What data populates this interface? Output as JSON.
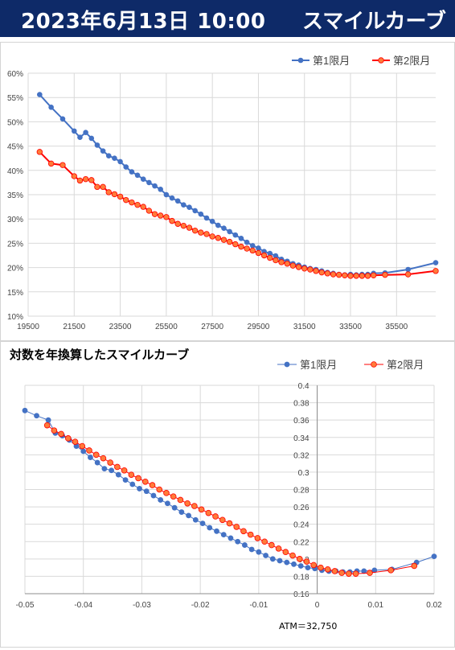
{
  "header": {
    "date": "2023年6月13日 10:00",
    "title": "スマイルカーブ"
  },
  "colors": {
    "header_bg": "#0e2a68",
    "series1": "#4472c4",
    "series2": "#ff0000",
    "series2_fill": "#ff7b3a",
    "grid": "#d9d9d9"
  },
  "chart_data": [
    {
      "type": "line",
      "title": "",
      "ytick_format": "percent",
      "xlim": [
        19500,
        37200
      ],
      "ylim": [
        0.1,
        0.6
      ],
      "xticks": [
        19500,
        21500,
        23500,
        25500,
        27500,
        29500,
        31500,
        33500,
        35500
      ],
      "yticks": [
        0.1,
        0.15,
        0.2,
        0.25,
        0.3,
        0.35,
        0.4,
        0.45,
        0.5,
        0.55,
        0.6
      ],
      "legend": "top-right",
      "grid": true,
      "series": [
        {
          "name": "第1限月",
          "x": [
            20000,
            20500,
            21000,
            21500,
            21750,
            22000,
            22250,
            22500,
            22750,
            23000,
            23250,
            23500,
            23750,
            24000,
            24250,
            24500,
            24750,
            25000,
            25250,
            25500,
            25750,
            26000,
            26250,
            26500,
            26750,
            27000,
            27250,
            27500,
            27750,
            28000,
            28250,
            28500,
            28750,
            29000,
            29250,
            29500,
            29750,
            30000,
            30250,
            30500,
            30750,
            31000,
            31250,
            31500,
            31750,
            32000,
            32250,
            32500,
            32750,
            33000,
            33250,
            33500,
            33750,
            34000,
            34250,
            34500,
            35000,
            36000,
            37200
          ],
          "y": [
            0.556,
            0.53,
            0.506,
            0.481,
            0.468,
            0.478,
            0.466,
            0.452,
            0.44,
            0.43,
            0.425,
            0.418,
            0.407,
            0.397,
            0.39,
            0.382,
            0.375,
            0.368,
            0.361,
            0.35,
            0.343,
            0.337,
            0.329,
            0.324,
            0.317,
            0.31,
            0.302,
            0.295,
            0.287,
            0.281,
            0.274,
            0.267,
            0.26,
            0.252,
            0.245,
            0.24,
            0.233,
            0.229,
            0.224,
            0.217,
            0.213,
            0.208,
            0.205,
            0.201,
            0.198,
            0.196,
            0.193,
            0.19,
            0.188,
            0.186,
            0.185,
            0.186,
            0.185,
            0.186,
            0.186,
            0.188,
            0.189,
            0.196,
            0.21
          ]
        },
        {
          "name": "第2限月",
          "x": [
            20000,
            20500,
            21000,
            21500,
            21750,
            22000,
            22250,
            22500,
            22750,
            23000,
            23250,
            23500,
            23750,
            24000,
            24250,
            24500,
            24750,
            25000,
            25250,
            25500,
            25750,
            26000,
            26250,
            26500,
            26750,
            27000,
            27250,
            27500,
            27750,
            28000,
            28250,
            28500,
            28750,
            29000,
            29250,
            29500,
            29750,
            30000,
            30250,
            30500,
            30750,
            31000,
            31250,
            31500,
            31750,
            32000,
            32250,
            32500,
            32750,
            33000,
            33250,
            33500,
            33750,
            34000,
            34250,
            34500,
            35000,
            36000,
            37200
          ],
          "y": [
            0.438,
            0.414,
            0.411,
            0.388,
            0.379,
            0.382,
            0.38,
            0.366,
            0.366,
            0.355,
            0.351,
            0.346,
            0.339,
            0.334,
            0.329,
            0.325,
            0.317,
            0.31,
            0.307,
            0.304,
            0.296,
            0.29,
            0.286,
            0.282,
            0.276,
            0.272,
            0.269,
            0.264,
            0.261,
            0.257,
            0.253,
            0.248,
            0.243,
            0.239,
            0.235,
            0.23,
            0.225,
            0.22,
            0.215,
            0.211,
            0.208,
            0.204,
            0.201,
            0.198,
            0.196,
            0.193,
            0.19,
            0.188,
            0.186,
            0.185,
            0.184,
            0.183,
            0.183,
            0.183,
            0.183,
            0.184,
            0.185,
            0.186,
            0.193
          ]
        }
      ]
    },
    {
      "type": "scatter",
      "title": "対数を年換算したスマイルカーブ",
      "xlim": [
        -0.05,
        0.02
      ],
      "ylim": [
        0.16,
        0.4
      ],
      "xticks": [
        -0.05,
        -0.04,
        -0.03,
        -0.02,
        -0.01,
        0,
        0.01,
        0.02
      ],
      "yticks": [
        0.16,
        0.18,
        0.2,
        0.22,
        0.24,
        0.26,
        0.28,
        0.3,
        0.32,
        0.34,
        0.36,
        0.38,
        0.4
      ],
      "legend": "top-right",
      "grid": true,
      "annotation": "ATM＝32,750",
      "series": [
        {
          "name": "第1限月",
          "x": [
            -0.05,
            -0.048,
            -0.046,
            -0.0448,
            -0.0436,
            -0.0424,
            -0.0412,
            -0.04,
            -0.0388,
            -0.0376,
            -0.0364,
            -0.0352,
            -0.034,
            -0.0328,
            -0.0316,
            -0.0304,
            -0.0292,
            -0.028,
            -0.0268,
            -0.0256,
            -0.0244,
            -0.0232,
            -0.022,
            -0.0208,
            -0.0196,
            -0.0184,
            -0.0172,
            -0.016,
            -0.0148,
            -0.0136,
            -0.0124,
            -0.0112,
            -0.01,
            -0.0088,
            -0.0076,
            -0.0064,
            -0.0052,
            -0.004,
            -0.0028,
            -0.0016,
            -0.0004,
            0.0008,
            0.002,
            0.0032,
            0.0044,
            0.0056,
            0.0068,
            0.008,
            0.0098,
            0.0128,
            0.017,
            0.02
          ],
          "y": [
            0.371,
            0.365,
            0.36,
            0.345,
            0.342,
            0.337,
            0.33,
            0.324,
            0.317,
            0.311,
            0.304,
            0.302,
            0.297,
            0.291,
            0.286,
            0.281,
            0.278,
            0.273,
            0.268,
            0.264,
            0.259,
            0.254,
            0.25,
            0.245,
            0.241,
            0.236,
            0.232,
            0.228,
            0.224,
            0.22,
            0.216,
            0.211,
            0.208,
            0.204,
            0.2,
            0.198,
            0.196,
            0.194,
            0.192,
            0.19,
            0.189,
            0.187,
            0.186,
            0.186,
            0.185,
            0.185,
            0.186,
            0.186,
            0.187,
            0.188,
            0.196,
            0.203
          ]
        },
        {
          "name": "第2限月",
          "x": [
            -0.0462,
            -0.045,
            -0.0438,
            -0.0426,
            -0.0414,
            -0.0402,
            -0.039,
            -0.0378,
            -0.0366,
            -0.0354,
            -0.0342,
            -0.033,
            -0.0318,
            -0.0306,
            -0.0294,
            -0.0282,
            -0.027,
            -0.0258,
            -0.0246,
            -0.0234,
            -0.0222,
            -0.021,
            -0.0198,
            -0.0186,
            -0.0174,
            -0.0162,
            -0.015,
            -0.0138,
            -0.0126,
            -0.0114,
            -0.0102,
            -0.009,
            -0.0078,
            -0.0066,
            -0.0054,
            -0.0042,
            -0.003,
            -0.0018,
            -0.0006,
            0.0006,
            0.0018,
            0.003,
            0.0042,
            0.0054,
            0.0066,
            0.009,
            0.0126,
            0.0166
          ],
          "y": [
            0.354,
            0.348,
            0.344,
            0.339,
            0.335,
            0.33,
            0.325,
            0.32,
            0.316,
            0.311,
            0.306,
            0.302,
            0.297,
            0.293,
            0.289,
            0.285,
            0.28,
            0.276,
            0.272,
            0.268,
            0.264,
            0.261,
            0.257,
            0.253,
            0.249,
            0.245,
            0.241,
            0.237,
            0.232,
            0.228,
            0.224,
            0.22,
            0.216,
            0.212,
            0.208,
            0.204,
            0.2,
            0.197,
            0.193,
            0.19,
            0.188,
            0.186,
            0.184,
            0.183,
            0.183,
            0.184,
            0.187,
            0.192
          ]
        }
      ]
    }
  ]
}
